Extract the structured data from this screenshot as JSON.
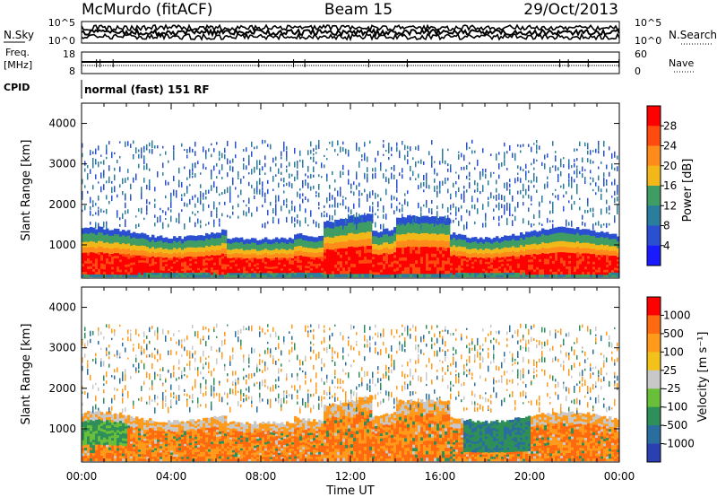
{
  "header": {
    "station": "McMurdo (fitACF)",
    "beam": "Beam 15",
    "date": "29/Oct/2013"
  },
  "noise_panel": {
    "left_label": "N.Sky",
    "right_label": "N.Search",
    "tick_high": "10^5",
    "tick_low": "10^0"
  },
  "freq_panel": {
    "left_label_1": "Freq.",
    "left_label_2": "[MHz]",
    "left_tick_high": "18",
    "left_tick_low": "8",
    "right_label": "Nave",
    "right_tick_high": "60",
    "right_tick_low": "0"
  },
  "cpid": {
    "label": "CPID",
    "value": "normal (fast) 151 RF"
  },
  "chart_data": [
    {
      "type": "heatmap",
      "panel": "power",
      "ylabel": "Slant Range [km]",
      "ylim": [
        180,
        4500
      ],
      "y_ticks": [
        "1000",
        "2000",
        "3000",
        "4000"
      ],
      "colorbar_label": "Power [dB]",
      "colorbar_ticks": [
        "4",
        "8",
        "12",
        "16",
        "20",
        "24",
        "28"
      ],
      "colorbar_colors": [
        "#1a1aff",
        "#2a4fd0",
        "#2a7d9c",
        "#3f9d63",
        "#f2b81a",
        "#ff8c1a",
        "#ff4a10",
        "#ff0000"
      ],
      "xlim_hours": [
        0,
        24
      ],
      "x_ticks": [
        "00:00",
        "04:00",
        "08:00",
        "12:00",
        "16:00",
        "20:00",
        "00:00"
      ]
    },
    {
      "type": "heatmap",
      "panel": "velocity",
      "ylabel": "Slant Range [km]",
      "ylim": [
        180,
        4500
      ],
      "y_ticks": [
        "1000",
        "2000",
        "3000",
        "4000"
      ],
      "colorbar_label": "Velocity [m s⁻¹]",
      "colorbar_ticks": [
        "1000",
        "500",
        "100",
        "25",
        "-25",
        "-100",
        "-500",
        "-1000"
      ],
      "colorbar_colors": [
        "#2a3fb0",
        "#2a6ea0",
        "#2f8f58",
        "#6abf3a",
        "#c8c8c8",
        "#f2c21a",
        "#ff9a1a",
        "#ff6a10",
        "#ff0000"
      ],
      "xlim_hours": [
        0,
        24
      ],
      "x_ticks": [
        "00:00",
        "04:00",
        "08:00",
        "12:00",
        "16:00",
        "20:00",
        "00:00"
      ],
      "xlabel": "Time UT"
    }
  ]
}
